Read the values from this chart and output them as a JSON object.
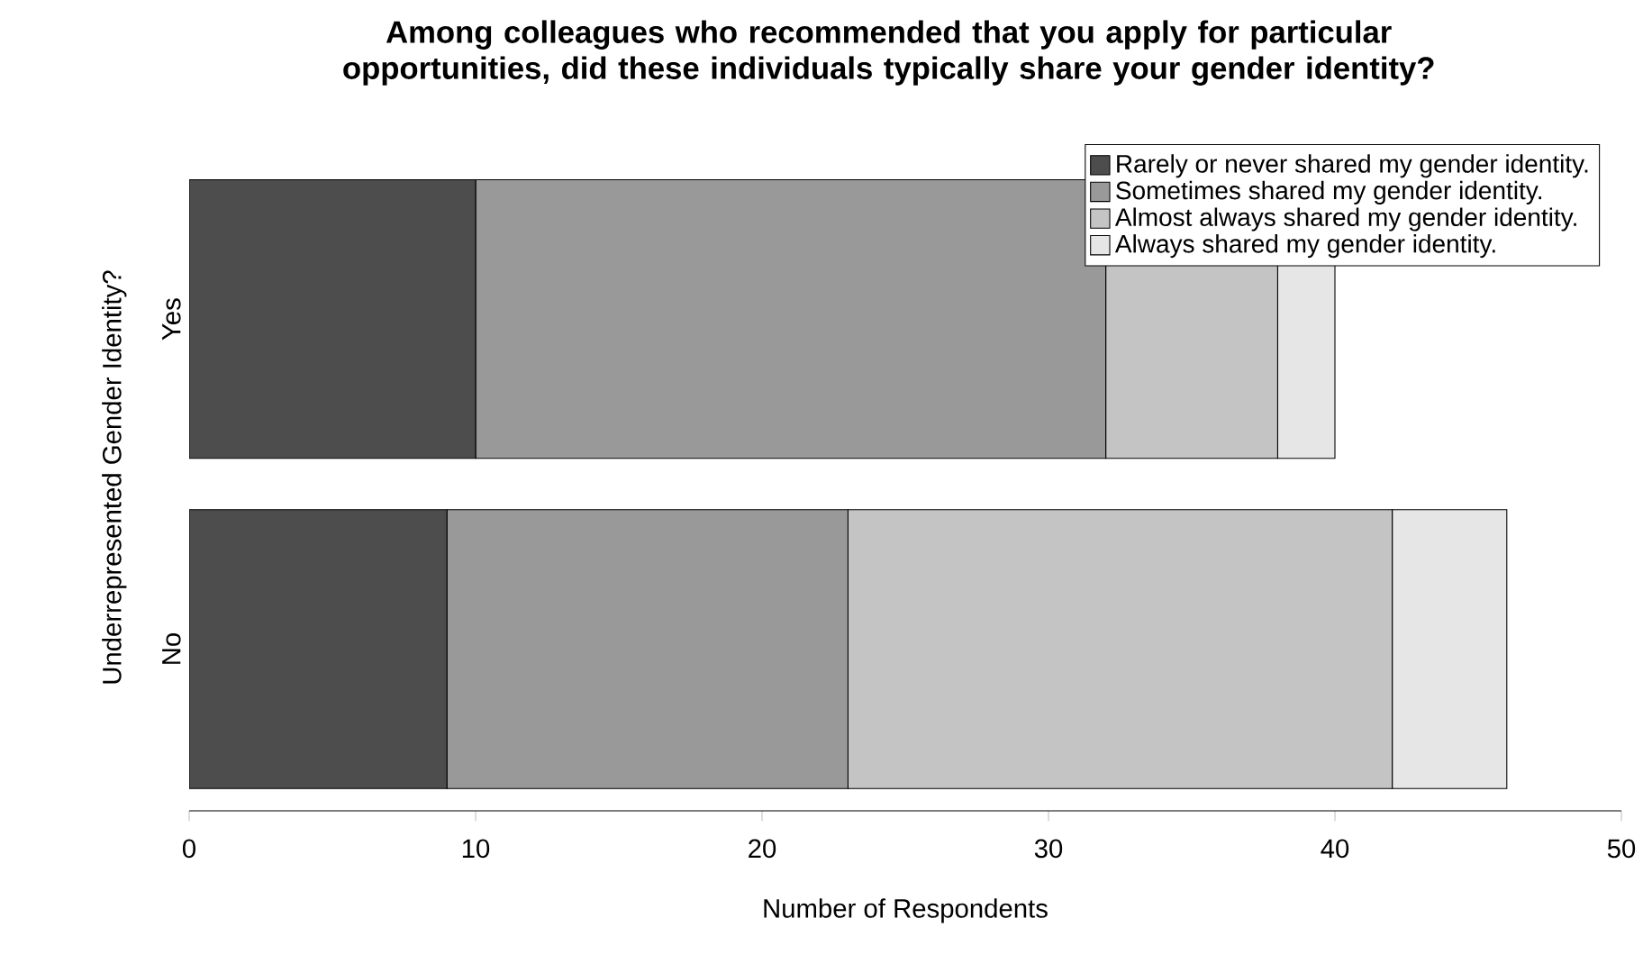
{
  "chart_data": {
    "type": "bar",
    "orientation": "horizontal",
    "stacked": true,
    "title": "Among colleagues who recommended that you apply for particular opportunities, did these individuals typically share your gender identity?",
    "xlabel": "Number of Respondents",
    "ylabel": "Underrepresented Gender Identity?",
    "categories": [
      "Yes",
      "No"
    ],
    "series": [
      {
        "name": "Rarely or never shared my gender identity.",
        "color": "#4d4d4d",
        "values": [
          10,
          9
        ]
      },
      {
        "name": "Sometimes shared my gender identity.",
        "color": "#999999",
        "values": [
          22,
          14
        ]
      },
      {
        "name": "Almost always shared my gender identity.",
        "color": "#c4c4c4",
        "values": [
          6,
          19
        ]
      },
      {
        "name": "Always shared my gender identity.",
        "color": "#e6e6e6",
        "values": [
          2,
          4
        ]
      }
    ],
    "xlim": [
      0,
      50
    ],
    "xticks": [
      0,
      10,
      20,
      30,
      40,
      50
    ],
    "legend": "top right",
    "grid": false
  }
}
